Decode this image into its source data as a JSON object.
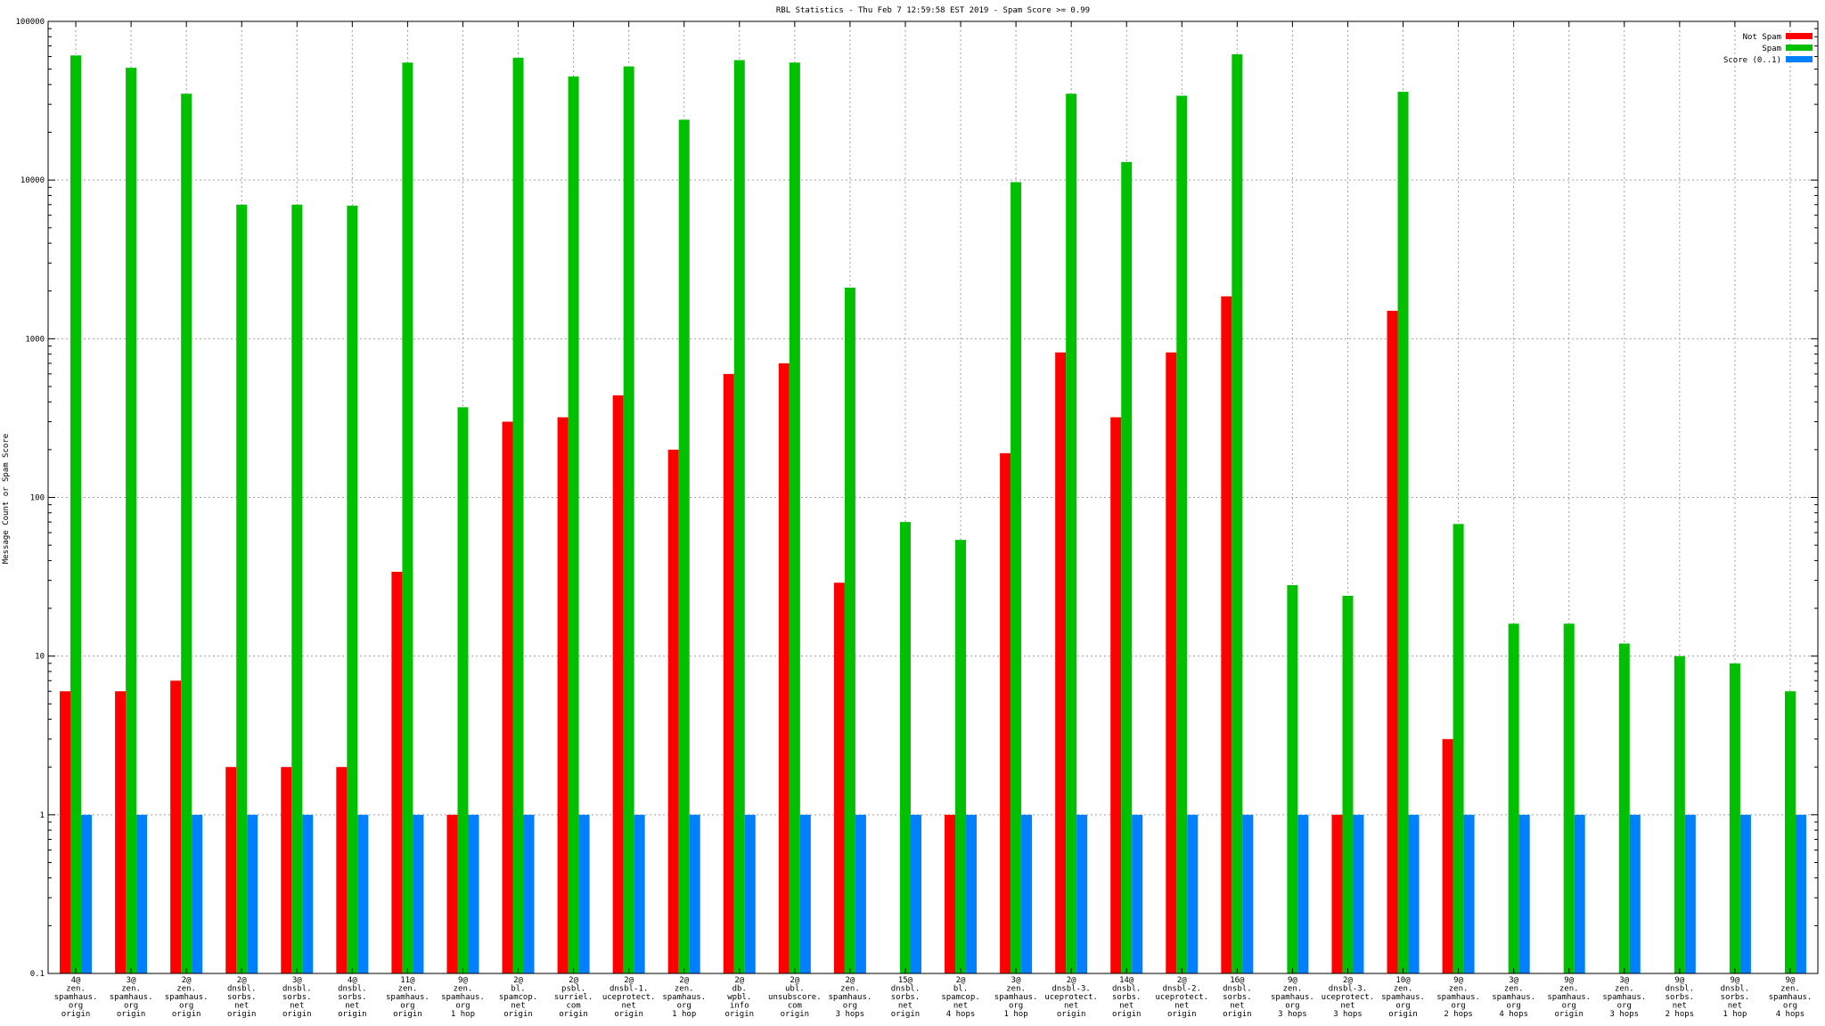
{
  "chart_data": {
    "type": "bar",
    "title": "RBL Statistics - Thu Feb  7 12:59:58 EST 2019 - Spam Score >= 0.99",
    "xlabel": "",
    "ylabel": "Message Count or Spam Score",
    "yscale": "log",
    "ylim": [
      0.1,
      100000
    ],
    "yticks": [
      {
        "value": 0.1,
        "label": "0.1"
      },
      {
        "value": 1,
        "label": "1"
      },
      {
        "value": 10,
        "label": "10"
      },
      {
        "value": 100,
        "label": "100"
      },
      {
        "value": 1000,
        "label": "1000"
      },
      {
        "value": 10000,
        "label": "10000"
      },
      {
        "value": 100000,
        "label": "100000"
      }
    ],
    "grid": true,
    "legend_position": "top-right",
    "categories": [
      [
        "4@",
        "zen.",
        "spamhaus.",
        "org",
        "origin"
      ],
      [
        "3@",
        "zen.",
        "spamhaus.",
        "org",
        "origin"
      ],
      [
        "2@",
        "zen.",
        "spamhaus.",
        "org",
        "origin"
      ],
      [
        "2@",
        "dnsbl.",
        "sorbs.",
        "net",
        "origin"
      ],
      [
        "3@",
        "dnsbl.",
        "sorbs.",
        "net",
        "origin"
      ],
      [
        "4@",
        "dnsbl.",
        "sorbs.",
        "net",
        "origin"
      ],
      [
        "11@",
        "zen.",
        "spamhaus.",
        "org",
        "origin"
      ],
      [
        "9@",
        "zen.",
        "spamhaus.",
        "org",
        "1 hop"
      ],
      [
        "2@",
        "bl.",
        "spamcop.",
        "net",
        "origin"
      ],
      [
        "2@",
        "psbl.",
        "surriel.",
        "com",
        "origin"
      ],
      [
        "2@",
        "dnsbl-1.",
        "uceprotect.",
        "net",
        "origin"
      ],
      [
        "2@",
        "zen.",
        "spamhaus.",
        "org",
        "1 hop"
      ],
      [
        "2@",
        "db.",
        "wpbl.",
        "info",
        "origin"
      ],
      [
        "2@",
        "ubl.",
        "unsubscore.",
        "com",
        "origin"
      ],
      [
        "2@",
        "zen.",
        "spamhaus.",
        "org",
        "3 hops"
      ],
      [
        "15@",
        "dnsbl.",
        "sorbs.",
        "net",
        "origin"
      ],
      [
        "2@",
        "bl.",
        "spamcop.",
        "net",
        "4 hops"
      ],
      [
        "3@",
        "zen.",
        "spamhaus.",
        "org",
        "1 hop"
      ],
      [
        "2@",
        "dnsbl-3.",
        "uceprotect.",
        "net",
        "origin"
      ],
      [
        "14@",
        "dnsbl.",
        "sorbs.",
        "net",
        "origin"
      ],
      [
        "2@",
        "dnsbl-2.",
        "uceprotect.",
        "net",
        "origin"
      ],
      [
        "16@",
        "dnsbl.",
        "sorbs.",
        "net",
        "origin"
      ],
      [
        "9@",
        "zen.",
        "spamhaus.",
        "org",
        "3 hops"
      ],
      [
        "2@",
        "dnsbl-3.",
        "uceprotect.",
        "net",
        "3 hops"
      ],
      [
        "10@",
        "zen.",
        "spamhaus.",
        "org",
        "origin"
      ],
      [
        "9@",
        "zen.",
        "spamhaus.",
        "org",
        "2 hops"
      ],
      [
        "3@",
        "zen.",
        "spamhaus.",
        "org",
        "4 hops"
      ],
      [
        "9@",
        "zen.",
        "spamhaus.",
        "org",
        "origin"
      ],
      [
        "3@",
        "zen.",
        "spamhaus.",
        "org",
        "3 hops"
      ],
      [
        "9@",
        "dnsbl.",
        "sorbs.",
        "net",
        "2 hops"
      ],
      [
        "9@",
        "dnsbl.",
        "sorbs.",
        "net",
        "1 hop"
      ],
      [
        "9@",
        "zen.",
        "spamhaus.",
        "org",
        "4 hops"
      ]
    ],
    "series": [
      {
        "name": "Not Spam",
        "color": "#ff0000",
        "values": [
          6,
          6,
          7,
          2,
          2,
          2,
          34,
          1,
          300,
          320,
          440,
          200,
          600,
          700,
          29,
          null,
          1,
          190,
          820,
          320,
          820,
          1850,
          null,
          1,
          1500,
          3,
          null,
          null,
          null,
          null,
          null,
          null
        ]
      },
      {
        "name": "Spam",
        "color": "#00c000",
        "values": [
          61000,
          51000,
          35000,
          7000,
          7000,
          6900,
          55000,
          370,
          59000,
          45000,
          52000,
          24000,
          57000,
          55000,
          2100,
          70,
          54,
          9700,
          35000,
          13000,
          34000,
          62000,
          28,
          24,
          36000,
          68,
          16,
          16,
          12,
          10,
          9,
          6
        ]
      },
      {
        "name": "Score (0..1)",
        "color": "#0080ff",
        "values": [
          1,
          1,
          1,
          1,
          1,
          1,
          1,
          1,
          1,
          1,
          1,
          1,
          1,
          1,
          1,
          1,
          1,
          1,
          1,
          1,
          1,
          1,
          1,
          1,
          1,
          1,
          1,
          1,
          1,
          1,
          1,
          1
        ]
      }
    ]
  }
}
